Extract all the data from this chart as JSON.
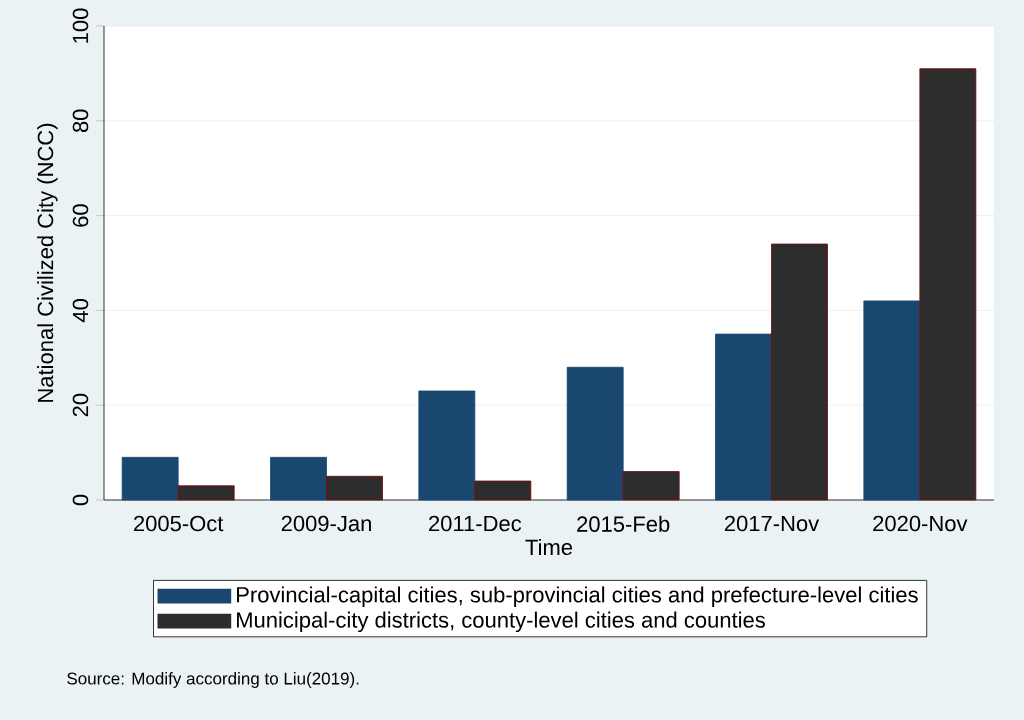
{
  "chart_data": {
    "type": "bar",
    "xlabel": "Time",
    "ylabel": "National Civilized City (NCC)",
    "categories": [
      "2005-Oct",
      "2009-Jan",
      "2011-Dec",
      "2015-Feb",
      "2017-Nov",
      "2020-Nov"
    ],
    "series": [
      {
        "name": "Provincial-capital cities, sub-provincial cities and prefecture-level cities",
        "color": "#1a476f",
        "values": [
          9,
          9,
          23,
          28,
          35,
          42
        ]
      },
      {
        "name": "Municipal-city districts, county-level cities and counties",
        "color": "#2d2d2d",
        "values": [
          3,
          5,
          4,
          6,
          54,
          91
        ]
      }
    ],
    "ylim": [
      0,
      100
    ],
    "yticks": [
      0,
      20,
      40,
      60,
      80,
      100
    ],
    "grid": "y",
    "legend": "bottom",
    "annotations": [
      "Source: Modify according to Liu(2019)."
    ]
  }
}
